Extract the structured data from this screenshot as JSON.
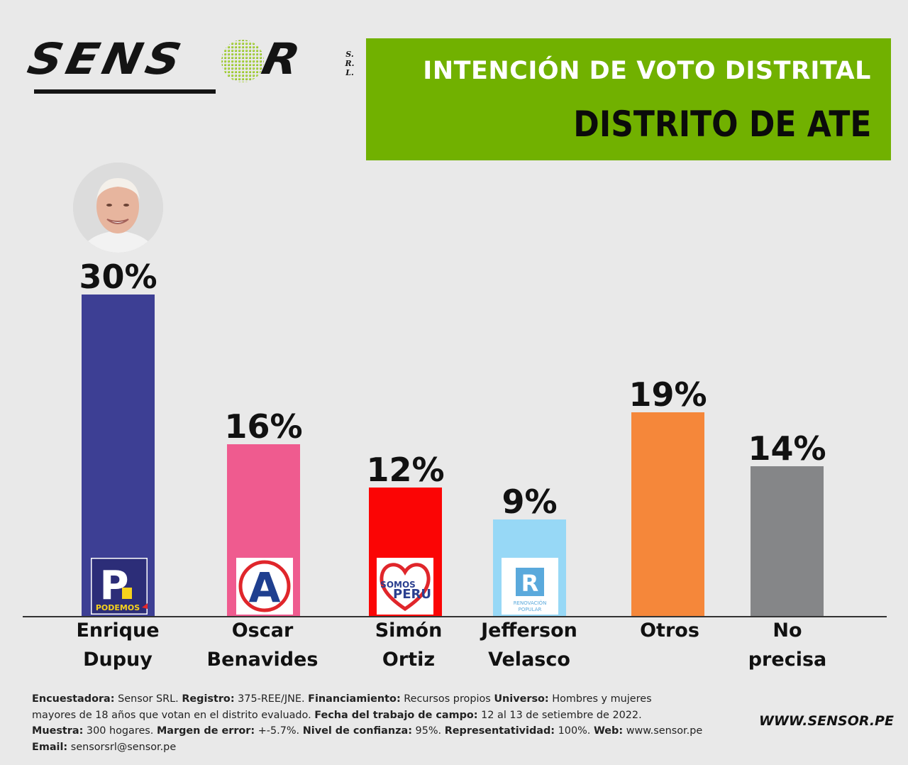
{
  "brand": {
    "logo_main": "SENS",
    "logo_end": "R",
    "logo_suffix": [
      "S.",
      "R.",
      "L."
    ]
  },
  "header": {
    "subtitle": "INTENCIÓN DE VOTO DISTRITAL",
    "title": "DISTRITO DE ATE",
    "background": "#71b100"
  },
  "chart_data": {
    "type": "bar",
    "title": "DISTRITO DE ATE",
    "subtitle": "INTENCIÓN DE VOTO DISTRITAL",
    "categories": [
      [
        "Enrique",
        "Dupuy"
      ],
      [
        "Oscar",
        "Benavides"
      ],
      [
        "Simón",
        "Ortiz"
      ],
      [
        "Jefferson",
        "Velasco"
      ],
      [
        "Otros"
      ],
      [
        "No",
        "precisa"
      ]
    ],
    "values": [
      30,
      16,
      12,
      9,
      19,
      14
    ],
    "value_labels": [
      "30%",
      "16%",
      "12%",
      "9%",
      "19%",
      "14%"
    ],
    "colors": [
      "#3d3f94",
      "#ef5b8f",
      "#fb0505",
      "#97d8f6",
      "#f5873a",
      "#858688"
    ],
    "party_logos": [
      "podemos-logo",
      "accion-popular-logo",
      "somos-peru-logo",
      "renovacion-popular-logo",
      null,
      null
    ],
    "party_logo_text": {
      "podemos": "PODEMOS",
      "podemos_letter": "P",
      "accion_popular_letter": "A",
      "somos_peru": [
        "SOMOS",
        "PERU"
      ],
      "renovacion_letter": "R",
      "renovacion": [
        "RENOVACIÓN",
        "POPULAR"
      ]
    },
    "ylim": [
      0,
      35
    ],
    "grid": false,
    "legend": "none"
  },
  "footer": {
    "lines": [
      [
        {
          "b": "Encuestadora:"
        },
        {
          "t": " Sensor SRL. "
        },
        {
          "b": "Registro:"
        },
        {
          "t": " 375-REE/JNE. "
        },
        {
          "b": "Financiamiento:"
        },
        {
          "t": " Recursos propios "
        },
        {
          "b": "Universo:"
        },
        {
          "t": " Hombres y mujeres"
        }
      ],
      [
        {
          "t": "mayores de 18 años que votan en el distrito evaluado. "
        },
        {
          "b": "Fecha del trabajo de campo:"
        },
        {
          "t": " 12 al 13 de setiembre de 2022."
        }
      ],
      [
        {
          "b": "Muestra:"
        },
        {
          "t": " 300 hogares. "
        },
        {
          "b": "Margen de error:"
        },
        {
          "t": " +-5.7%. "
        },
        {
          "b": "Nivel de confianza:"
        },
        {
          "t": " 95%. "
        },
        {
          "b": "Representatividad:"
        },
        {
          "t": " 100%. "
        },
        {
          "b": "Web:"
        },
        {
          "t": " www.sensor.pe"
        }
      ],
      [
        {
          "b": "Email:"
        },
        {
          "t": " sensorsrl@sensor.pe"
        }
      ]
    ],
    "website": "WWW.SENSOR.PE"
  }
}
